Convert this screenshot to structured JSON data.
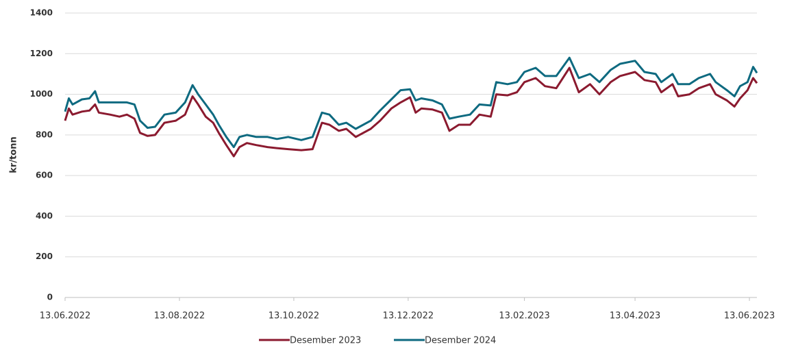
{
  "chart_data": {
    "type": "line",
    "y_label": "kr/tonn",
    "x": [
      "13.06.2022",
      "15.06.2022",
      "17.06.2022",
      "22.06.2022",
      "26.06.2022",
      "29.06.2022",
      "01.07.2022",
      "07.07.2022",
      "12.07.2022",
      "16.07.2022",
      "20.07.2022",
      "23.07.2022",
      "27.07.2022",
      "31.07.2022",
      "05.08.2022",
      "11.08.2022",
      "16.08.2022",
      "20.08.2022",
      "23.08.2022",
      "27.08.2022",
      "31.08.2022",
      "03.09.2022",
      "07.09.2022",
      "11.09.2022",
      "14.09.2022",
      "18.09.2022",
      "23.09.2022",
      "29.09.2022",
      "04.10.2022",
      "10.10.2022",
      "17.10.2022",
      "23.10.2022",
      "28.10.2022",
      "01.11.2022",
      "06.11.2022",
      "10.11.2022",
      "15.11.2022",
      "23.11.2022",
      "28.11.2022",
      "04.12.2022",
      "09.12.2022",
      "14.12.2022",
      "17.12.2022",
      "20.12.2022",
      "26.12.2022",
      "31.12.2022",
      "04.01.2023",
      "09.01.2023",
      "15.01.2023",
      "20.01.2023",
      "26.01.2023",
      "29.01.2023",
      "04.02.2023",
      "09.02.2023",
      "13.02.2023",
      "19.02.2023",
      "24.02.2023",
      "02.03.2023",
      "09.03.2023",
      "14.03.2023",
      "20.03.2023",
      "25.03.2023",
      "31.03.2023",
      "05.04.2023",
      "13.04.2023",
      "18.04.2023",
      "24.04.2023",
      "27.04.2023",
      "03.05.2023",
      "06.05.2023",
      "12.05.2023",
      "17.05.2023",
      "23.05.2023",
      "26.05.2023",
      "01.06.2023",
      "05.06.2023",
      "08.06.2023",
      "12.06.2023",
      "15.06.2023",
      "17.06.2023"
    ],
    "series": [
      {
        "name": "Desember 2023",
        "color": "#8b1a2f",
        "values": [
          870,
          930,
          900,
          915,
          920,
          950,
          910,
          900,
          890,
          900,
          880,
          810,
          795,
          800,
          860,
          870,
          900,
          990,
          950,
          890,
          860,
          810,
          750,
          695,
          740,
          760,
          750,
          740,
          735,
          730,
          725,
          730,
          860,
          850,
          820,
          830,
          790,
          830,
          870,
          930,
          960,
          985,
          910,
          930,
          925,
          910,
          820,
          850,
          850,
          900,
          890,
          1000,
          995,
          1010,
          1060,
          1080,
          1040,
          1030,
          1130,
          1010,
          1050,
          1000,
          1060,
          1090,
          1110,
          1070,
          1060,
          1010,
          1050,
          990,
          1000,
          1030,
          1050,
          1000,
          970,
          940,
          980,
          1020,
          1080,
          1055
        ]
      },
      {
        "name": "Desember 2024",
        "color": "#0e6a80",
        "values": [
          915,
          980,
          950,
          975,
          980,
          1015,
          960,
          960,
          960,
          960,
          950,
          870,
          835,
          840,
          900,
          910,
          960,
          1045,
          1000,
          950,
          900,
          850,
          790,
          740,
          790,
          800,
          790,
          790,
          780,
          790,
          775,
          790,
          910,
          900,
          850,
          860,
          830,
          870,
          920,
          975,
          1020,
          1025,
          970,
          980,
          970,
          950,
          880,
          890,
          900,
          950,
          945,
          1060,
          1050,
          1060,
          1110,
          1130,
          1090,
          1090,
          1180,
          1080,
          1100,
          1060,
          1120,
          1150,
          1165,
          1110,
          1100,
          1060,
          1100,
          1050,
          1050,
          1080,
          1100,
          1060,
          1020,
          990,
          1040,
          1060,
          1135,
          1105
        ]
      }
    ],
    "xlim": [
      "13.06.2022",
      "17.06.2023"
    ],
    "xticks": [
      "13.06.2022",
      "13.08.2022",
      "13.10.2022",
      "13.12.2022",
      "13.02.2023",
      "13.04.2023",
      "13.06.2023"
    ],
    "ylim": [
      0,
      1400
    ],
    "yticks": [
      0,
      200,
      400,
      600,
      800,
      1000,
      1200,
      1400
    ],
    "grid": true,
    "legend": "bottom"
  }
}
